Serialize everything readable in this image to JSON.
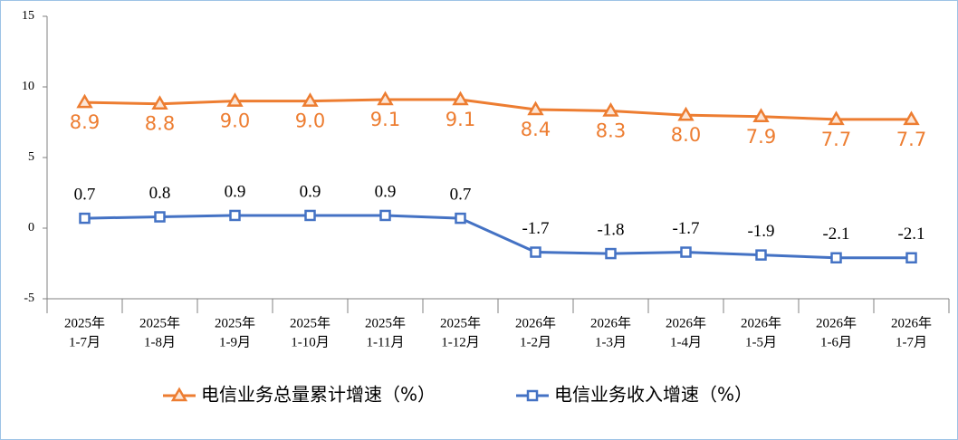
{
  "chart_data": {
    "type": "line",
    "categories": [
      [
        "2025年",
        "1-7月"
      ],
      [
        "2025年",
        "1-8月"
      ],
      [
        "2025年",
        "1-9月"
      ],
      [
        "2025年",
        "1-10月"
      ],
      [
        "2025年",
        "1-11月"
      ],
      [
        "2025年",
        "1-12月"
      ],
      [
        "2026年",
        "1-2月"
      ],
      [
        "2026年",
        "1-3月"
      ],
      [
        "2026年",
        "1-4月"
      ],
      [
        "2026年",
        "1-5月"
      ],
      [
        "2026年",
        "1-6月"
      ],
      [
        "2026年",
        "1-7月"
      ]
    ],
    "series": [
      {
        "name": "电信业务总量累计增速（%）",
        "color": "#ed7d31",
        "marker": "triangle",
        "label_position": "below",
        "values": [
          8.9,
          8.8,
          9.0,
          9.0,
          9.1,
          9.1,
          8.4,
          8.3,
          8.0,
          7.9,
          7.7,
          7.7
        ],
        "value_labels": [
          "8.9",
          "8.8",
          "9.0",
          "9.0",
          "9.1",
          "9.1",
          "8.4",
          "8.3",
          "8.0",
          "7.9",
          "7.7",
          "7.7"
        ]
      },
      {
        "name": "电信业务收入增速（%）",
        "color": "#4472c4",
        "marker": "square",
        "label_position": "above",
        "values": [
          0.7,
          0.8,
          0.9,
          0.9,
          0.9,
          0.7,
          -1.7,
          -1.8,
          -1.7,
          -1.9,
          -2.1,
          -2.1
        ],
        "value_labels": [
          "0.7",
          "0.8",
          "0.9",
          "0.9",
          "0.9",
          "0.7",
          "-1.7",
          "-1.8",
          "-1.7",
          "-1.9",
          "-2.1",
          "-2.1"
        ]
      }
    ],
    "ylim": [
      -5,
      15
    ],
    "yticks": [
      15,
      10,
      5,
      0,
      -5
    ],
    "grid": false,
    "legend": "bottom"
  }
}
